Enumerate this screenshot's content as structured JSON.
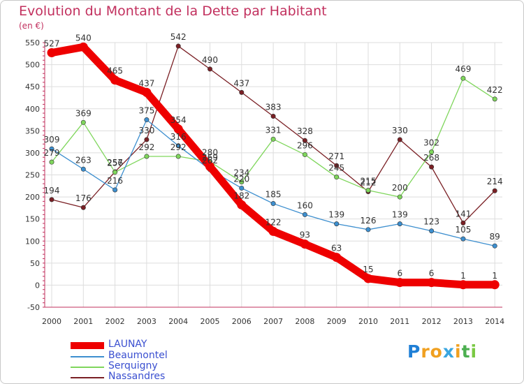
{
  "title": "Evolution du Montant de la Dette par Habitant",
  "unit": "(en €)",
  "logo": {
    "chars": [
      "P",
      "r",
      "o",
      "x",
      "i",
      "t",
      "i"
    ],
    "colors": [
      "#1f7fd6",
      "#f0a020",
      "#f0a020",
      "#3aa6e0",
      "#f0a020",
      "#4caf50",
      "#7ac943"
    ]
  },
  "chart_data": {
    "type": "line",
    "x": [
      "2000",
      "2001",
      "2002",
      "2003",
      "2004",
      "2005",
      "2006",
      "2007",
      "2008",
      "2009",
      "2010",
      "2011",
      "2012",
      "2013",
      "2014"
    ],
    "ylim": [
      -50,
      550
    ],
    "yticks": [
      "-50",
      "0",
      "50",
      "100",
      "150",
      "200",
      "250",
      "300",
      "350",
      "400",
      "450",
      "500",
      "550"
    ],
    "grid": true,
    "legend_position": "bottom-left",
    "series": [
      {
        "name": "Nassandres",
        "color": "#7a1f24",
        "values": [
          194,
          176,
          257,
          330,
          542,
          490,
          437,
          383,
          328,
          271,
          212,
          330,
          268,
          141,
          214
        ],
        "labels": [
          "194",
          "176",
          "257",
          "330",
          "542",
          "490",
          "437",
          "383",
          "328",
          "271",
          "212",
          "330",
          "268",
          "141",
          "214"
        ]
      },
      {
        "name": "Serquigny",
        "color": "#7fd65c",
        "values": [
          279,
          369,
          256,
          292,
          292,
          280,
          234,
          331,
          296,
          245,
          215,
          200,
          302,
          469,
          422
        ],
        "labels": [
          "279",
          "369",
          "256",
          "292",
          "292",
          "280",
          "234",
          "331",
          "296",
          "245",
          "215",
          "200",
          "302",
          "469",
          "422"
        ]
      },
      {
        "name": "Beaumontel",
        "color": "#3d8fcf",
        "values": [
          309,
          263,
          216,
          375,
          316,
          262,
          220,
          185,
          160,
          139,
          126,
          139,
          123,
          105,
          89
        ],
        "labels": [
          "309",
          "263",
          "216",
          "375",
          "316",
          "262",
          "220",
          "185",
          "160",
          "139",
          "126",
          "139",
          "123",
          "105",
          "89"
        ]
      },
      {
        "name": "LAUNAY",
        "color": "#ee0000",
        "values": [
          527,
          540,
          465,
          437,
          354,
          269,
          182,
          122,
          93,
          63,
          15,
          6,
          6,
          1,
          1
        ],
        "labels": [
          "527",
          "540",
          "465",
          "437",
          "354",
          "269",
          "182",
          "122",
          "93",
          "63",
          "15",
          "6",
          "6",
          "1",
          "1"
        ]
      }
    ],
    "legend": [
      "LAUNAY",
      "Beaumontel",
      "Serquigny",
      "Nassandres"
    ]
  }
}
